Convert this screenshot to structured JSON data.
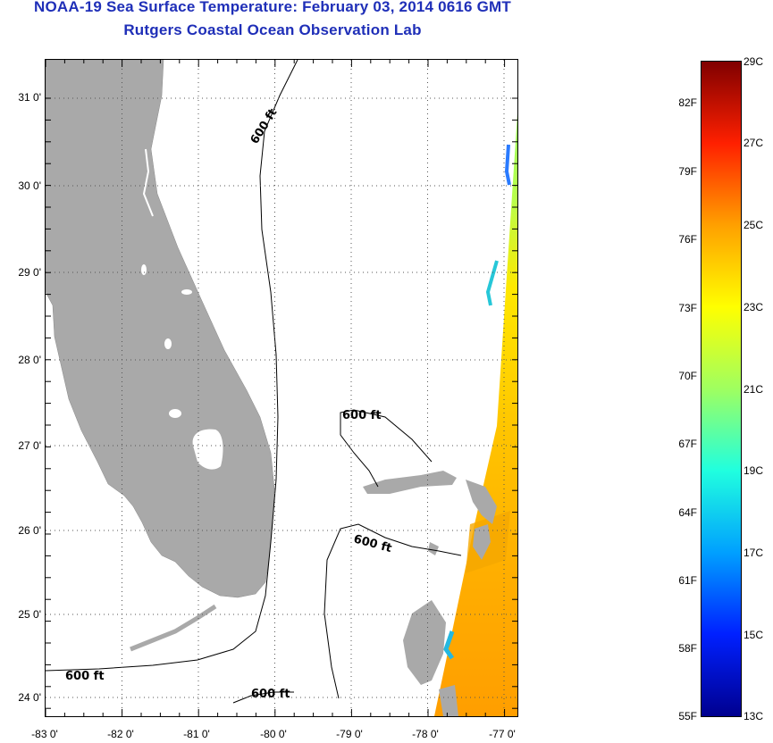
{
  "header": {
    "title": "NOAA-19 Sea Surface Temperature:  February 03, 2014 0616 GMT",
    "subtitle": "Rutgers Coastal Ocean Observation Lab"
  },
  "map": {
    "lat_labels": [
      "31 0'",
      "30 0'",
      "29 0'",
      "28 0'",
      "27 0'",
      "26 0'",
      "25 0'",
      "24 0'"
    ],
    "lon_labels": [
      "-83 0'",
      "-82 0'",
      "-81 0'",
      "-80 0'",
      "-79 0'",
      "-78 0'",
      "-77 0'"
    ],
    "contour_labels": [
      "600 ft",
      "600 ft",
      "600 ft",
      "600 ft",
      "600 ft"
    ],
    "land_color": "#a9a9a9",
    "contour_depth": "600 ft"
  },
  "colorbar": {
    "fahrenheit_labels": [
      "82F",
      "79F",
      "76F",
      "73F",
      "70F",
      "67F",
      "64F",
      "61F",
      "58F",
      "55F"
    ],
    "celsius_labels": [
      "29C",
      "27C",
      "25C",
      "23C",
      "21C",
      "19C",
      "17C",
      "15C",
      "13C"
    ],
    "min_c": 13,
    "max_c": 29,
    "colors": [
      "#00008f",
      "#0020ff",
      "#00a0ff",
      "#20ffdf",
      "#9fff60",
      "#ffff00",
      "#ffa000",
      "#ff2000",
      "#800000"
    ]
  }
}
